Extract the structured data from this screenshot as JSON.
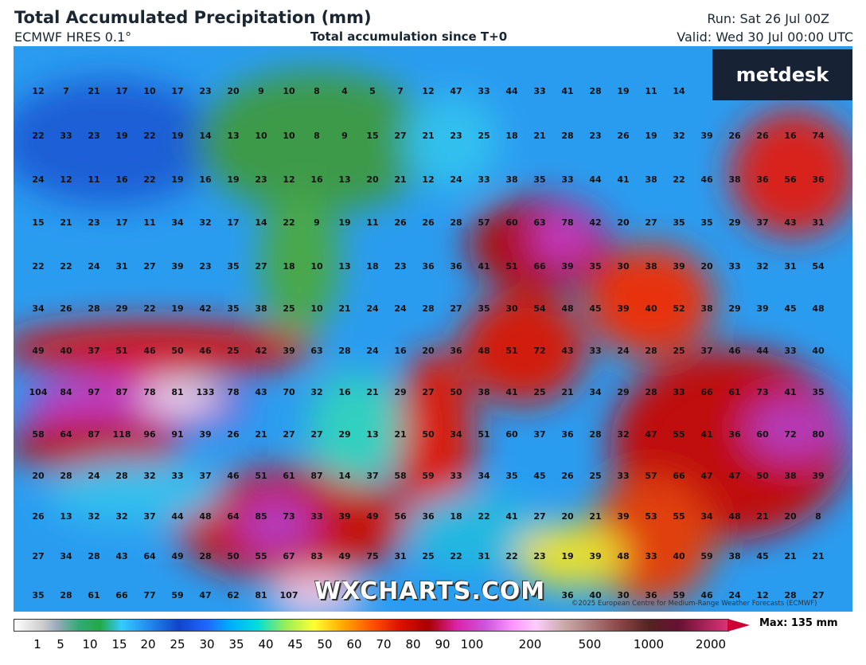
{
  "header": {
    "title": "Total Accumulated Precipitation (mm)",
    "model": "ECMWF HRES 0.1°",
    "subtitle": "Total accumulation since T+0",
    "run": "Run: Sat 26 Jul 00Z",
    "valid": "Valid: Wed 30 Jul 00:00 UTC"
  },
  "logo": "metdesk",
  "watermark": "WXCHARTS.COM",
  "copyright": "©2025 European Centre for Medium-Range Weather Forecasts (ECMWF)",
  "grid": [
    [
      12,
      7,
      21,
      17,
      10,
      17,
      23,
      20,
      9,
      10,
      8,
      4,
      5,
      7,
      12,
      47,
      33,
      44,
      33,
      41,
      28,
      19,
      11,
      14,
      null,
      null,
      null,
      null,
      null
    ],
    [
      22,
      33,
      23,
      19,
      22,
      19,
      14,
      13,
      10,
      10,
      8,
      9,
      15,
      27,
      21,
      23,
      25,
      18,
      21,
      28,
      23,
      26,
      19,
      32,
      39,
      26,
      26,
      16,
      74
    ],
    [
      24,
      12,
      11,
      16,
      22,
      19,
      16,
      19,
      23,
      12,
      16,
      13,
      20,
      21,
      12,
      24,
      33,
      38,
      35,
      33,
      44,
      41,
      38,
      22,
      46,
      38,
      36,
      56,
      36
    ],
    [
      15,
      21,
      23,
      17,
      11,
      34,
      32,
      17,
      14,
      22,
      9,
      19,
      11,
      26,
      26,
      28,
      57,
      60,
      63,
      78,
      42,
      20,
      27,
      35,
      35,
      29,
      37,
      43,
      31
    ],
    [
      22,
      22,
      24,
      31,
      27,
      39,
      23,
      35,
      27,
      18,
      10,
      13,
      18,
      23,
      36,
      36,
      41,
      51,
      66,
      39,
      35,
      30,
      38,
      39,
      20,
      33,
      32,
      31,
      54
    ],
    [
      34,
      26,
      28,
      29,
      22,
      19,
      42,
      35,
      38,
      25,
      10,
      21,
      24,
      24,
      28,
      27,
      35,
      30,
      54,
      48,
      45,
      39,
      40,
      52,
      38,
      29,
      39,
      45,
      48
    ],
    [
      49,
      40,
      37,
      51,
      46,
      50,
      46,
      25,
      42,
      39,
      63,
      28,
      24,
      16,
      20,
      36,
      48,
      51,
      72,
      43,
      33,
      24,
      28,
      25,
      37,
      46,
      44,
      33,
      40
    ],
    [
      104,
      84,
      97,
      87,
      78,
      81,
      133,
      78,
      43,
      70,
      32,
      16,
      21,
      29,
      27,
      50,
      38,
      41,
      25,
      21,
      34,
      29,
      28,
      33,
      66,
      61,
      73,
      41,
      35
    ],
    [
      58,
      64,
      87,
      118,
      96,
      91,
      39,
      26,
      21,
      27,
      27,
      29,
      13,
      21,
      50,
      34,
      51,
      60,
      37,
      36,
      28,
      32,
      47,
      55,
      41,
      36,
      60,
      72,
      80
    ],
    [
      20,
      28,
      24,
      28,
      32,
      33,
      37,
      46,
      51,
      61,
      87,
      14,
      37,
      58,
      59,
      33,
      34,
      35,
      45,
      26,
      25,
      33,
      57,
      66,
      47,
      47,
      50,
      38,
      39
    ],
    [
      26,
      13,
      32,
      32,
      37,
      44,
      48,
      64,
      85,
      73,
      33,
      39,
      49,
      56,
      36,
      18,
      22,
      41,
      27,
      20,
      21,
      39,
      53,
      55,
      34,
      48,
      21,
      20,
      8
    ],
    [
      27,
      34,
      28,
      43,
      64,
      49,
      28,
      50,
      55,
      67,
      83,
      49,
      75,
      31,
      25,
      22,
      31,
      22,
      23,
      19,
      39,
      48,
      33,
      40,
      59,
      38,
      45,
      21,
      21
    ],
    [
      35,
      28,
      61,
      66,
      77,
      59,
      47,
      62,
      81,
      107,
      null,
      null,
      null,
      null,
      null,
      null,
      null,
      null,
      null,
      36,
      40,
      30,
      36,
      59,
      46,
      24,
      12,
      28,
      27
    ]
  ],
  "legend": {
    "labels": [
      1,
      5,
      10,
      15,
      20,
      25,
      30,
      35,
      40,
      45,
      50,
      60,
      70,
      80,
      90,
      100,
      200,
      500,
      1000,
      2000
    ],
    "max": "Max: 135 mm"
  }
}
